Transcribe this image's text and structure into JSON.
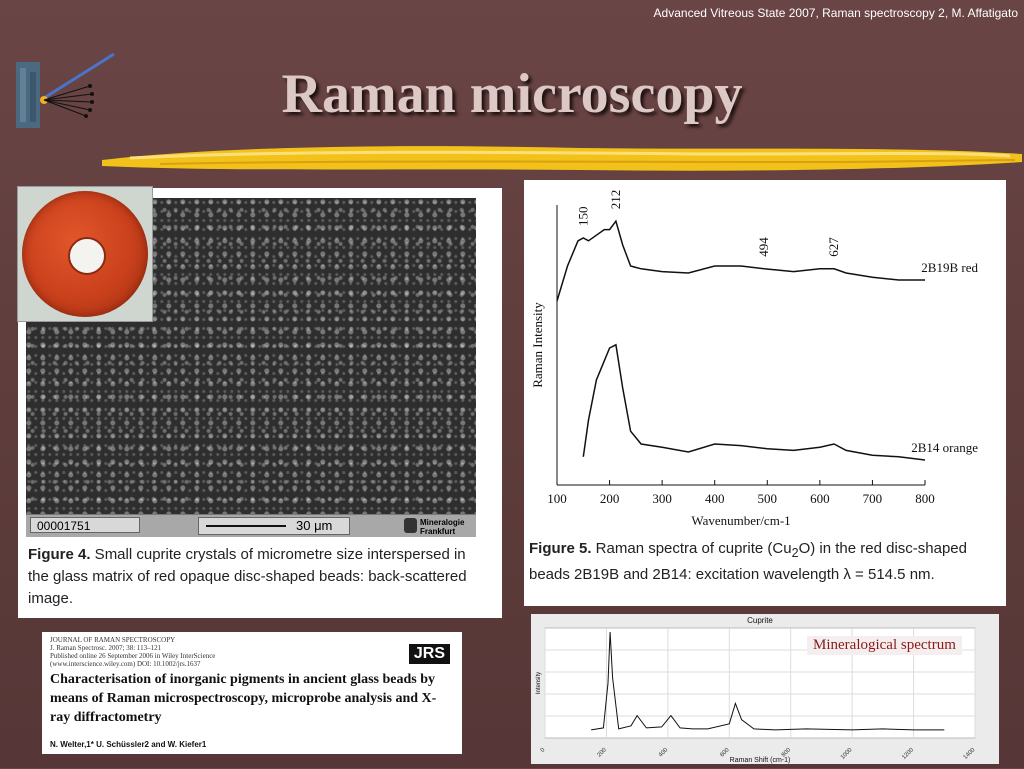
{
  "header_note": "Advanced Vitreous State 2007, Raman spectroscopy 2, M. Affatigato",
  "title": "Raman microscopy",
  "sem_figure": {
    "scalebar_id": "00001751",
    "scalebar_length": "30 μm",
    "lab_label_line1": "Mineralogie",
    "lab_label_line2": "Frankfurt",
    "caption_bold": "Figure 4.",
    "caption_text": " Small cuprite crystals of micrometre size interspersed in the glass matrix of red opaque disc-shaped beads: back-scattered image."
  },
  "spectra_figure": {
    "caption_bold": "Figure 5.",
    "caption_pre": " Raman spectra of cuprite (Cu",
    "caption_sub": "2",
    "caption_post": "O) in the red disc-shaped beads 2B19B and 2B14: excitation wavelength λ = 514.5 nm."
  },
  "paper": {
    "journal": "JOURNAL OF RAMAN SPECTROSCOPY",
    "citation": "J. Raman Spectrosc. 2007; 38: 113–121",
    "published": "Published online 26 September 2006 in Wiley InterScience",
    "doi": "(www.interscience.wiley.com) DOI: 10.1002/jrs.1637",
    "badge": "JRS",
    "title": "Characterisation of inorganic pigments in ancient glass beads by means of Raman microspectroscopy, microprobe analysis and X-ray diffractometry",
    "authors": "N. Welter,1* U. Schüssler2 and W. Kiefer1"
  },
  "mineral_label": "Mineralogical spectrum",
  "colors": {
    "background": "#5e3c3c",
    "title": "#dcc8c4",
    "brush": "#f2c21a",
    "mineral_label": "#8b1a1a"
  },
  "chart_data": [
    {
      "type": "line",
      "xlabel": "Wavenumber/cm-1",
      "ylabel": "Raman Intensity",
      "xlim": [
        100,
        800
      ],
      "xticks": [
        100,
        200,
        300,
        400,
        500,
        600,
        700,
        800
      ],
      "peak_labels": [
        "150",
        "212",
        "494",
        "627"
      ],
      "peak_positions": [
        150,
        212,
        494,
        627
      ],
      "series": [
        {
          "name": "2B19B red",
          "x": [
            100,
            120,
            140,
            150,
            160,
            175,
            190,
            200,
            212,
            225,
            240,
            260,
            300,
            350,
            400,
            450,
            494,
            550,
            600,
            627,
            650,
            700,
            750,
            800
          ],
          "y": [
            0.35,
            0.6,
            0.78,
            0.8,
            0.78,
            0.82,
            0.86,
            0.86,
            0.92,
            0.75,
            0.6,
            0.58,
            0.56,
            0.55,
            0.6,
            0.6,
            0.58,
            0.56,
            0.58,
            0.58,
            0.55,
            0.52,
            0.5,
            0.5
          ]
        },
        {
          "name": "2B14 orange",
          "x": [
            150,
            160,
            175,
            190,
            200,
            212,
            225,
            240,
            260,
            300,
            350,
            400,
            450,
            500,
            550,
            600,
            627,
            650,
            700,
            750,
            800
          ],
          "y": [
            0.02,
            0.25,
            0.5,
            0.62,
            0.7,
            0.72,
            0.45,
            0.18,
            0.1,
            0.08,
            0.05,
            0.1,
            0.09,
            0.07,
            0.06,
            0.08,
            0.1,
            0.06,
            0.03,
            0.02,
            0.0
          ]
        }
      ]
    },
    {
      "type": "line",
      "title": "Cuprite",
      "xlabel": "Raman Shift (cm-1)",
      "ylabel": "Intensity",
      "xlim": [
        0,
        1400
      ],
      "xticks": [
        0,
        200,
        400,
        600,
        800,
        1000,
        1200,
        1400
      ],
      "series": [
        {
          "x": [
            150,
            190,
            205,
            212,
            220,
            240,
            280,
            300,
            330,
            380,
            410,
            440,
            480,
            530,
            600,
            620,
            640,
            680,
            750,
            850,
            1000,
            1100,
            1200,
            1300
          ],
          "y": [
            0.04,
            0.06,
            0.5,
            1.0,
            0.55,
            0.05,
            0.08,
            0.18,
            0.06,
            0.07,
            0.18,
            0.06,
            0.05,
            0.05,
            0.1,
            0.3,
            0.14,
            0.05,
            0.04,
            0.05,
            0.04,
            0.05,
            0.04,
            0.04
          ]
        }
      ]
    }
  ]
}
